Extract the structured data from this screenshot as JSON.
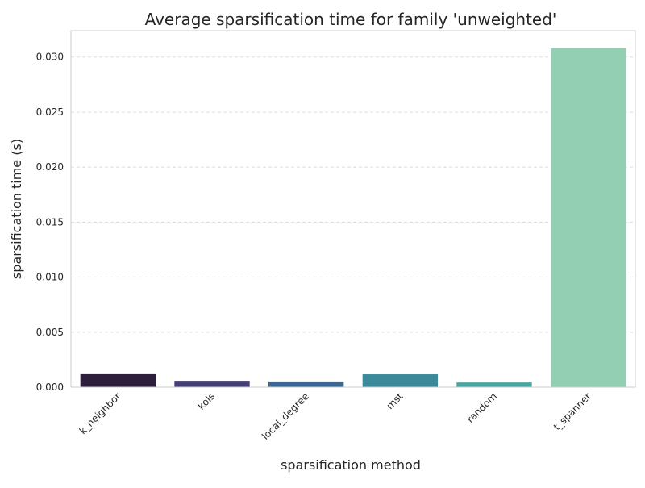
{
  "chart_data": {
    "type": "bar",
    "title": "Average sparsification time for family 'unweighted'",
    "xlabel": "sparsification method",
    "ylabel": "sparsification time (s)",
    "categories": [
      "k_neighbor",
      "kols",
      "local_degree",
      "mst",
      "random",
      "t_spanner"
    ],
    "values": [
      0.00118,
      0.00058,
      0.00052,
      0.00117,
      0.00043,
      0.0308
    ],
    "ylim": [
      0,
      0.0324
    ],
    "yticks": [
      0.0,
      0.005,
      0.01,
      0.015,
      0.02,
      0.025,
      0.03
    ],
    "ytick_labels": [
      "0.000",
      "0.005",
      "0.010",
      "0.015",
      "0.020",
      "0.025",
      "0.030"
    ],
    "grid": "y-dashed",
    "bar_colors": [
      "#2b1f3b",
      "#443f74",
      "#3b6891",
      "#3a8a9b",
      "#47a7a0",
      "#93d0b1"
    ],
    "colors": {
      "grid": "#dddddd",
      "axis": "#cccccc",
      "text": "#262626"
    }
  }
}
